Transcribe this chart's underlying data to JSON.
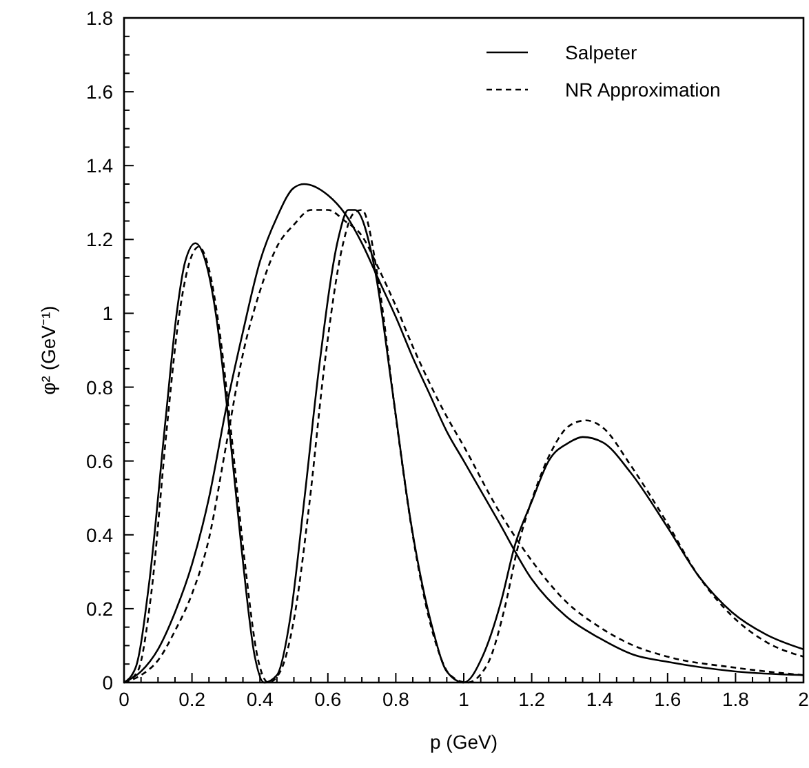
{
  "chart_data": {
    "type": "line",
    "xlabel": "p (GeV)",
    "ylabel": "φ² (GeV⁻¹)",
    "xlim": [
      0,
      2
    ],
    "ylim": [
      0,
      1.8
    ],
    "xticks": [
      0,
      {
        "value": 0.05,
        "label": null
      },
      {
        "value": 0.1,
        "label": null
      },
      {
        "value": 0.15,
        "label": null
      },
      0.2,
      {
        "value": 0.25,
        "label": null
      },
      {
        "value": 0.3,
        "label": null
      },
      {
        "value": 0.35,
        "label": null
      },
      0.4,
      {
        "value": 0.45,
        "label": null
      },
      {
        "value": 0.5,
        "label": null
      },
      {
        "value": 0.55,
        "label": null
      },
      0.6,
      {
        "value": 0.65,
        "label": null
      },
      {
        "value": 0.7,
        "label": null
      },
      {
        "value": 0.75,
        "label": null
      },
      0.8,
      {
        "value": 0.85,
        "label": null
      },
      {
        "value": 0.9,
        "label": null
      },
      {
        "value": 0.95,
        "label": null
      },
      1,
      {
        "value": 1.05,
        "label": null
      },
      {
        "value": 1.1,
        "label": null
      },
      {
        "value": 1.15,
        "label": null
      },
      1.2,
      {
        "value": 1.25,
        "label": null
      },
      {
        "value": 1.3,
        "label": null
      },
      {
        "value": 1.35,
        "label": null
      },
      1.4,
      {
        "value": 1.45,
        "label": null
      },
      {
        "value": 1.5,
        "label": null
      },
      {
        "value": 1.55,
        "label": null
      },
      1.6,
      {
        "value": 1.65,
        "label": null
      },
      {
        "value": 1.7,
        "label": null
      },
      {
        "value": 1.75,
        "label": null
      },
      1.8,
      {
        "value": 1.85,
        "label": null
      },
      {
        "value": 1.9,
        "label": null
      },
      {
        "value": 1.95,
        "label": null
      },
      2
    ],
    "yticks": [
      0,
      {
        "value": 0.05,
        "label": null
      },
      {
        "value": 0.1,
        "label": null
      },
      {
        "value": 0.15,
        "label": null
      },
      0.2,
      {
        "value": 0.25,
        "label": null
      },
      {
        "value": 0.3,
        "label": null
      },
      {
        "value": 0.35,
        "label": null
      },
      0.4,
      {
        "value": 0.45,
        "label": null
      },
      {
        "value": 0.5,
        "label": null
      },
      {
        "value": 0.55,
        "label": null
      },
      0.6,
      {
        "value": 0.65,
        "label": null
      },
      {
        "value": 0.7,
        "label": null
      },
      {
        "value": 0.75,
        "label": null
      },
      0.8,
      {
        "value": 0.85,
        "label": null
      },
      {
        "value": 0.9,
        "label": null
      },
      {
        "value": 0.95,
        "label": null
      },
      1,
      {
        "value": 1.05,
        "label": null
      },
      {
        "value": 1.1,
        "label": null
      },
      {
        "value": 1.15,
        "label": null
      },
      1.2,
      {
        "value": 1.25,
        "label": null
      },
      {
        "value": 1.3,
        "label": null
      },
      {
        "value": 1.35,
        "label": null
      },
      1.4,
      {
        "value": 1.45,
        "label": null
      },
      {
        "value": 1.5,
        "label": null
      },
      {
        "value": 1.55,
        "label": null
      },
      1.6,
      {
        "value": 1.65,
        "label": null
      },
      {
        "value": 1.7,
        "label": null
      },
      {
        "value": 1.75,
        "label": null
      },
      1.8
    ],
    "grid": false,
    "legend": "top right",
    "marker": "none",
    "series": [
      {
        "name": "Salpeter",
        "color": "#000000",
        "line_style": "solid",
        "x": [
          0,
          0.05,
          0.1,
          0.15,
          0.2,
          0.25,
          0.3,
          0.35,
          0.4,
          0.45,
          0.5,
          0.53,
          0.6,
          0.65,
          0.7,
          0.75,
          0.8,
          0.85,
          0.9,
          0.95,
          1.0,
          1.1,
          1.2,
          1.3,
          1.4,
          1.5,
          1.6,
          1.8,
          2.0
        ],
        "values": [
          0,
          0.03,
          0.09,
          0.19,
          0.32,
          0.5,
          0.74,
          0.95,
          1.14,
          1.26,
          1.34,
          1.35,
          1.32,
          1.27,
          1.19,
          1.09,
          0.99,
          0.88,
          0.78,
          0.68,
          0.6,
          0.44,
          0.28,
          0.18,
          0.12,
          0.075,
          0.056,
          0.03,
          0.02
        ]
      },
      {
        "name": "NR Approximation",
        "color": "#000000",
        "line_style": "dashed",
        "x": [
          0,
          0.05,
          0.1,
          0.15,
          0.2,
          0.25,
          0.3,
          0.35,
          0.4,
          0.45,
          0.5,
          0.55,
          0.6,
          0.65,
          0.7,
          0.75,
          0.8,
          0.85,
          0.9,
          0.95,
          1.0,
          1.1,
          1.2,
          1.3,
          1.4,
          1.5,
          1.6,
          1.8,
          2.0
        ],
        "values": [
          0,
          0.02,
          0.06,
          0.14,
          0.24,
          0.39,
          0.64,
          0.89,
          1.06,
          1.18,
          1.24,
          1.28,
          1.28,
          1.25,
          1.21,
          1.12,
          1.02,
          0.91,
          0.81,
          0.72,
          0.64,
          0.47,
          0.33,
          0.22,
          0.15,
          0.1,
          0.07,
          0.04,
          0.02
        ]
      },
      {
        "color": "#000000",
        "line_style": "solid",
        "x": [
          0,
          0.034,
          0.074,
          0.122,
          0.155,
          0.18,
          0.21,
          0.24,
          0.27,
          0.304,
          0.345,
          0.385,
          0.412,
          0.45,
          0.49,
          0.53,
          0.575,
          0.63,
          0.66,
          0.68,
          0.74,
          0.79,
          0.845,
          0.91,
          0.95,
          1.0,
          1.055,
          1.11,
          1.15,
          1.2,
          1.25,
          1.31,
          1.35,
          1.41,
          1.49,
          1.6,
          1.69,
          1.79,
          1.89,
          2.0
        ],
        "values": [
          0,
          0.04,
          0.27,
          0.71,
          1.0,
          1.14,
          1.19,
          1.14,
          1.0,
          0.74,
          0.37,
          0.07,
          0,
          0.02,
          0.18,
          0.49,
          0.86,
          1.2,
          1.28,
          1.28,
          1.11,
          0.79,
          0.43,
          0.14,
          0.03,
          0,
          0.07,
          0.22,
          0.37,
          0.49,
          0.6,
          0.65,
          0.665,
          0.65,
          0.57,
          0.42,
          0.29,
          0.19,
          0.13,
          0.09
        ]
      },
      {
        "color": "#000000",
        "line_style": "dashed",
        "x": [
          0,
          0.04,
          0.08,
          0.125,
          0.16,
          0.19,
          0.22,
          0.25,
          0.28,
          0.315,
          0.355,
          0.395,
          0.425,
          0.46,
          0.5,
          0.545,
          0.59,
          0.645,
          0.675,
          0.7,
          0.75,
          0.8,
          0.855,
          0.92,
          0.96,
          1.01,
          1.07,
          1.12,
          1.16,
          1.21,
          1.26,
          1.31,
          1.36,
          1.41,
          1.49,
          1.6,
          1.69,
          1.79,
          1.89,
          2.0
        ],
        "values": [
          0,
          0.03,
          0.24,
          0.68,
          0.98,
          1.13,
          1.18,
          1.12,
          0.96,
          0.68,
          0.33,
          0.06,
          0,
          0.03,
          0.17,
          0.48,
          0.86,
          1.19,
          1.27,
          1.28,
          1.08,
          0.72,
          0.37,
          0.1,
          0.02,
          0,
          0.05,
          0.2,
          0.37,
          0.52,
          0.63,
          0.695,
          0.71,
          0.69,
          0.59,
          0.43,
          0.29,
          0.18,
          0.11,
          0.07
        ]
      }
    ]
  }
}
